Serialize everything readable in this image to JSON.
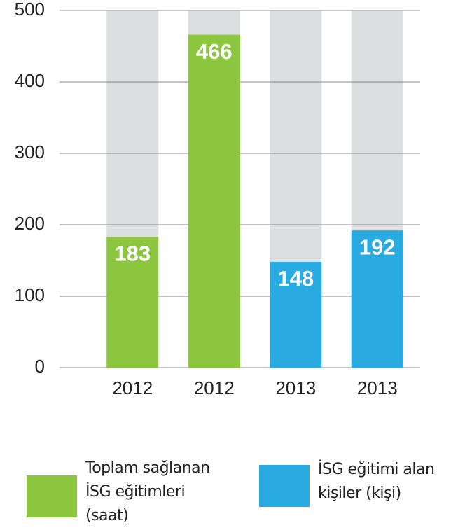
{
  "chart_data": {
    "type": "bar",
    "categories": [
      "2012",
      "2012",
      "2013",
      "2013"
    ],
    "series": [
      {
        "name": "Toplam sağlanan İSG eğitimleri (saat)",
        "color": "#8cc63f",
        "values": [
          183,
          466,
          null,
          null
        ]
      },
      {
        "name": "İSG eğitimi alan kişiler (kişi)",
        "color": "#29abe2",
        "values": [
          null,
          null,
          148,
          192
        ]
      }
    ],
    "ylim": [
      0,
      500
    ],
    "yticks": [
      0,
      100,
      200,
      300,
      400,
      500
    ],
    "grid": true
  }
}
